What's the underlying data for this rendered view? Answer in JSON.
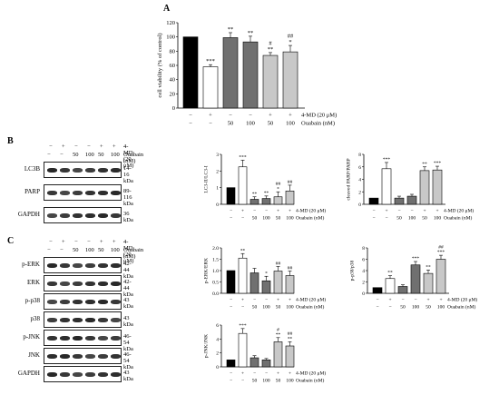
{
  "panel_labels": {
    "a": "A",
    "b": "B",
    "c": "C"
  },
  "treatments": {
    "md_label": "4-MD (20 μM)",
    "ouabain_label": "Ouabain (nM)",
    "md_row": [
      "−",
      "+",
      "−",
      "−",
      "+",
      "+"
    ],
    "ouabain_row": [
      "−",
      "−",
      "50",
      "100",
      "50",
      "100"
    ]
  },
  "blot_b": {
    "rows": [
      {
        "label": "LC3B",
        "kda": "14-16 kDa"
      },
      {
        "label": "PARP",
        "kda": "89-116 kDa"
      },
      {
        "label": "GAPDH",
        "kda": "36 kDa"
      }
    ]
  },
  "blot_c": {
    "rows": [
      {
        "label": "p-ERK",
        "kda": "42-44 kDa"
      },
      {
        "label": "ERK",
        "kda": "42-44 kDa"
      },
      {
        "label": "p-p38",
        "kda": "43 kDa"
      },
      {
        "label": "p38",
        "kda": "43 kDa"
      },
      {
        "label": "p-JNK",
        "kda": "46-54 kDa"
      },
      {
        "label": "JNK",
        "kda": "46-54 kDa"
      },
      {
        "label": "GAPDH",
        "kda": "43 kDa"
      }
    ]
  },
  "colors": [
    "#000000",
    "#ffffff",
    "#707070",
    "#707070",
    "#c8c8c8",
    "#c8c8c8"
  ],
  "chart_data": [
    {
      "id": "A",
      "type": "bar",
      "ylabel": "cell viability (% of control)",
      "ylim": [
        0,
        120
      ],
      "yticks": [
        "0",
        "20",
        "40",
        "60",
        "80",
        "100",
        "120"
      ],
      "values": [
        100,
        58,
        99,
        93,
        74,
        79
      ],
      "errors": [
        0,
        3,
        7,
        8,
        4,
        9
      ],
      "sig": [
        "",
        "***",
        "**",
        "**",
        "#\n**",
        "##\n*"
      ]
    },
    {
      "id": "B1",
      "type": "bar",
      "ylabel": "LC3-II/LC3-I",
      "ylim": [
        0,
        3
      ],
      "yticks": [
        "0",
        "1",
        "2",
        "3"
      ],
      "values": [
        1.0,
        2.25,
        0.3,
        0.35,
        0.45,
        0.8
      ],
      "errors": [
        0,
        0.4,
        0.15,
        0.15,
        0.3,
        0.35
      ],
      "sig": [
        "",
        "***",
        "**",
        "**",
        "##\n*",
        "##"
      ]
    },
    {
      "id": "B2",
      "type": "bar",
      "ylabel": "cleaved PARP/PARP",
      "ylim": [
        0,
        8
      ],
      "yticks": [
        "0",
        "2",
        "4",
        "6",
        "8"
      ],
      "values": [
        1.0,
        5.7,
        1.0,
        1.3,
        5.4,
        5.5
      ],
      "errors": [
        0,
        1.0,
        0.3,
        0.3,
        0.6,
        0.6
      ],
      "sig": [
        "",
        "***",
        "",
        "",
        "**",
        "***"
      ]
    },
    {
      "id": "C1",
      "type": "bar",
      "ylabel": "p-ERK/ERK",
      "ylim": [
        0,
        2
      ],
      "yticks": [
        "0.0",
        "0.5",
        "1.0",
        "1.5",
        "2.0"
      ],
      "values": [
        1.0,
        1.55,
        0.9,
        0.55,
        0.98,
        0.78
      ],
      "errors": [
        0,
        0.2,
        0.2,
        0.2,
        0.2,
        0.2
      ],
      "sig": [
        "",
        "**",
        "",
        "*",
        "##",
        "##"
      ]
    },
    {
      "id": "C2",
      "type": "bar",
      "ylabel": "p-p38/p38",
      "ylim": [
        0,
        8
      ],
      "yticks": [
        "0",
        "2",
        "4",
        "6",
        "8"
      ],
      "values": [
        1.0,
        2.6,
        1.2,
        5.0,
        3.5,
        6.0
      ],
      "errors": [
        0,
        0.5,
        0.3,
        0.6,
        0.6,
        0.7
      ],
      "sig": [
        "",
        "**",
        "",
        "***",
        "**",
        "##\n***"
      ]
    },
    {
      "id": "C3",
      "type": "bar",
      "ylabel": "p-JNK/JNK",
      "ylim": [
        0,
        6
      ],
      "yticks": [
        "0",
        "2",
        "4",
        "6"
      ],
      "values": [
        1.0,
        4.8,
        1.3,
        1.0,
        3.6,
        3.0
      ],
      "errors": [
        0,
        0.7,
        0.3,
        0.2,
        0.6,
        0.6
      ],
      "sig": [
        "",
        "***",
        "",
        "",
        "#\n**",
        "##\n**"
      ]
    }
  ]
}
